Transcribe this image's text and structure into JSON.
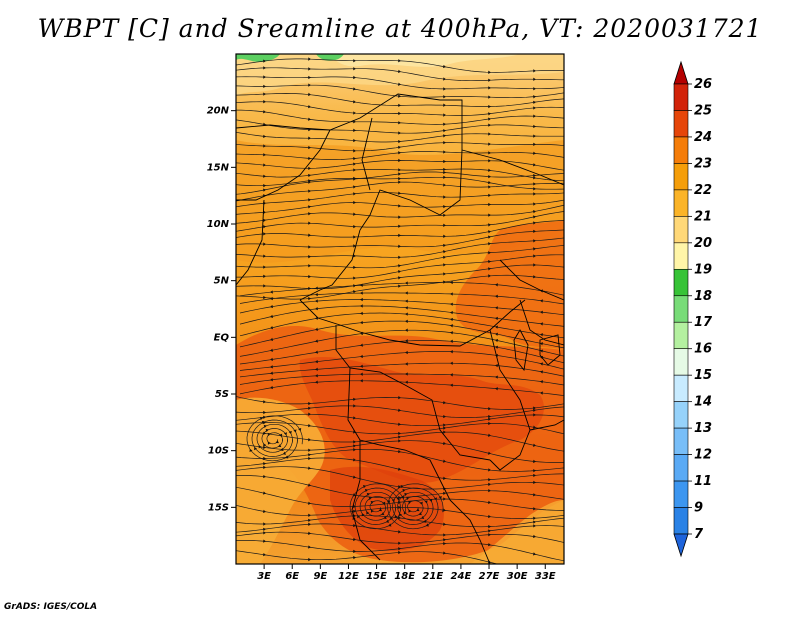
{
  "title": "WBPT [C] and Sreamline at 400hPa, VT: 2020031721",
  "credit": "GrADS: IGES/COLA",
  "map": {
    "lon_range": [
      0,
      35
    ],
    "lat_range": [
      -20,
      25
    ],
    "lat_ticks": [
      {
        "value": 20,
        "label": "20N"
      },
      {
        "value": 15,
        "label": "15N"
      },
      {
        "value": 10,
        "label": "10N"
      },
      {
        "value": 5,
        "label": "5N"
      },
      {
        "value": 0,
        "label": "EQ"
      },
      {
        "value": -5,
        "label": "5S"
      },
      {
        "value": -10,
        "label": "10S"
      },
      {
        "value": -15,
        "label": "15S"
      }
    ],
    "lon_ticks": [
      {
        "value": 3,
        "label": "3E"
      },
      {
        "value": 6,
        "label": "6E"
      },
      {
        "value": 9,
        "label": "9E"
      },
      {
        "value": 12,
        "label": "12E"
      },
      {
        "value": 15,
        "label": "15E"
      },
      {
        "value": 18,
        "label": "18E"
      },
      {
        "value": 21,
        "label": "21E"
      },
      {
        "value": 24,
        "label": "24E"
      },
      {
        "value": 27,
        "label": "27E"
      },
      {
        "value": 30,
        "label": "30E"
      },
      {
        "value": 33,
        "label": "33E"
      }
    ]
  },
  "colorbar": {
    "levels": [
      "7",
      "9",
      "11",
      "12",
      "13",
      "14",
      "15",
      "16",
      "17",
      "18",
      "19",
      "20",
      "21",
      "22",
      "23",
      "24",
      "25",
      "26"
    ],
    "colors": [
      "#1e64dc",
      "#2a82e6",
      "#3c96f0",
      "#5aaaf5",
      "#78bef8",
      "#96d2fa",
      "#c8ebff",
      "#e6fae6",
      "#b4f0a0",
      "#78dc78",
      "#37c337",
      "#fff5a8",
      "#ffd878",
      "#fbb428",
      "#f59e0a",
      "#f57d0a",
      "#e6460a",
      "#d2230a",
      "#b40000"
    ]
  },
  "chart_data": {
    "type": "heatmap",
    "title": "WBPT [C] and Sreamline at 400hPa, VT: 2020031721",
    "variable": "wet-bulb potential temperature (C) with streamlines",
    "level": "400hPa",
    "valid_time": "2020031721",
    "x_range_deg_east": [
      0,
      35
    ],
    "y_range_deg_north": [
      -20,
      25
    ],
    "value_range": [
      7,
      26
    ],
    "dominant_values": {
      "north_of_10N": "20-22",
      "0N_to_10N": "21-22",
      "10S_to_0N": "22-23",
      "south_of_10S": "23-24"
    },
    "features": [
      {
        "type": "cyclonic circulation",
        "lon": 4,
        "lat": -9
      },
      {
        "type": "circulation",
        "lon": 15,
        "lat": -15
      },
      {
        "type": "circulation",
        "lon": 19,
        "lat": -15
      }
    ]
  }
}
